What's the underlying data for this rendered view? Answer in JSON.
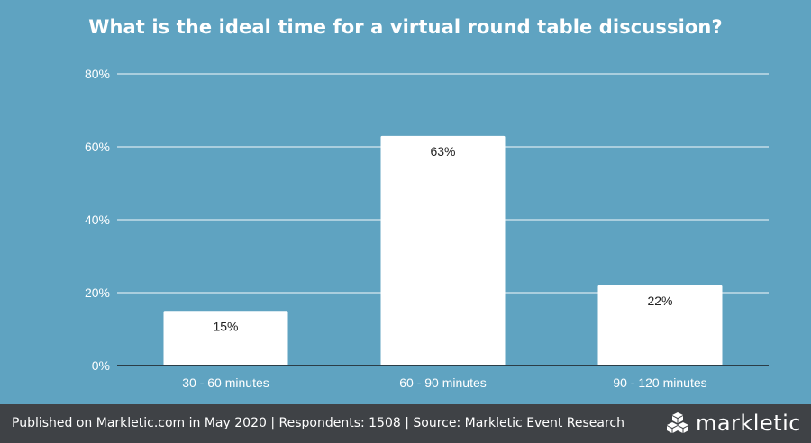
{
  "chart_data": {
    "type": "bar",
    "title": "What is the ideal time for a virtual round table discussion?",
    "categories": [
      "30 - 60 minutes",
      "60 - 90 minutes",
      "90 - 120 minutes"
    ],
    "values": [
      15,
      63,
      22
    ],
    "value_labels": [
      "15%",
      "63%",
      "22%"
    ],
    "xlabel": "",
    "ylabel": "",
    "ylim": [
      0,
      80
    ],
    "yticks": [
      0,
      20,
      40,
      60,
      80
    ],
    "ytick_labels": [
      "0%",
      "20%",
      "40%",
      "60%",
      "80%"
    ],
    "grid": true,
    "legend": "none",
    "colors": {
      "background": "#5fa3c1",
      "bar": "#ffffff",
      "gridline": "#d6e8f0"
    }
  },
  "footer": {
    "text": "Published on Markletic.com in May 2020 | Respondents: 1508 | Source: Markletic Event Research",
    "brand": "markletic",
    "brand_icon": "cubes-logo-icon"
  }
}
